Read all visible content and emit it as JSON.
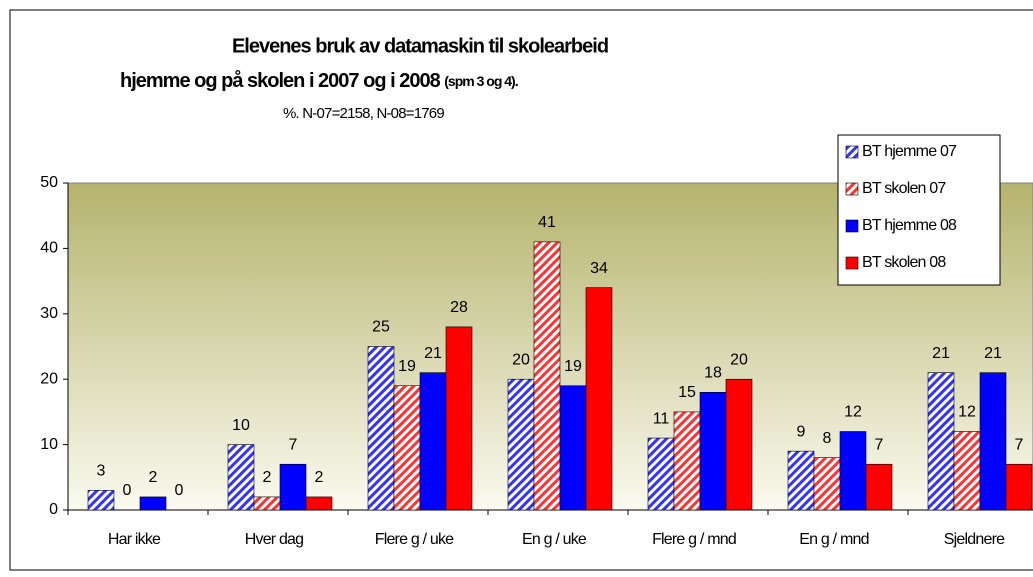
{
  "chart_data": {
    "type": "bar",
    "title": "Elevenes bruk av datamaskin til skolearbeid",
    "title_line2": "hjemme og på skolen i 2007 og i 2008",
    "title_note": "(spm 3 og 4).",
    "subtitle": "%. N-07=2158, N-08=1769",
    "categories": [
      "Har ikke",
      "Hver dag",
      "Flere g / uke",
      "En g / uke",
      "Flere g / mnd",
      "En g / mnd",
      "Sjeldnere"
    ],
    "series": [
      {
        "name": "BT hjemme 07",
        "color": "#3333ff",
        "pattern": "hatched",
        "values": [
          3,
          10,
          25,
          20,
          11,
          9,
          21
        ]
      },
      {
        "name": "BT skolen 07",
        "color": "#ff3333",
        "pattern": "hatched",
        "values": [
          0,
          2,
          19,
          41,
          15,
          8,
          12
        ]
      },
      {
        "name": "BT hjemme 08",
        "color": "#0000ff",
        "pattern": "solid",
        "values": [
          2,
          7,
          21,
          19,
          18,
          12,
          21
        ]
      },
      {
        "name": "BT skolen 08",
        "color": "#ff0000",
        "pattern": "solid",
        "values": [
          0,
          2,
          28,
          34,
          20,
          7,
          7
        ]
      }
    ],
    "ylim": [
      0,
      50
    ],
    "yticks": [
      0,
      10,
      20,
      30,
      40,
      50
    ],
    "grid": false,
    "legend": "top-right"
  }
}
